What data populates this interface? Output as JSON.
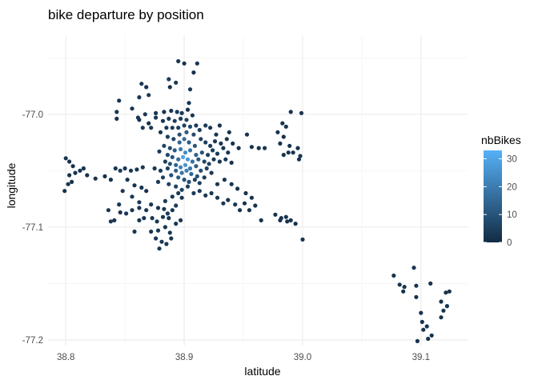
{
  "chart_data": {
    "type": "scatter",
    "title": "bike departure by position",
    "xlabel": "latitude",
    "ylabel": "longitude",
    "xlim": [
      38.785,
      39.14
    ],
    "ylim": [
      -77.205,
      -76.93
    ],
    "x_ticks": [
      38.8,
      38.9,
      39.0,
      39.1
    ],
    "x_tick_labels": [
      "38.8",
      "38.9",
      "39.0",
      "39.1"
    ],
    "y_ticks": [
      -77.0,
      -77.1,
      -77.2
    ],
    "y_tick_labels": [
      "-77.0",
      "-77.1",
      "-77.2"
    ],
    "grid": true,
    "legend": {
      "title": "nbBikes",
      "position": "right",
      "range": [
        0,
        33
      ],
      "ticks": [
        0,
        10,
        20,
        30
      ],
      "tick_labels": [
        "0",
        "10",
        "20",
        "30"
      ],
      "color_low": "#132B43",
      "color_high": "#56B1F7"
    },
    "points": [
      [
        38.895,
        -76.953,
        3
      ],
      [
        38.9,
        -76.955,
        2
      ],
      [
        38.911,
        -76.955,
        3
      ],
      [
        38.887,
        -76.969,
        4
      ],
      [
        38.893,
        -76.972,
        3
      ],
      [
        38.888,
        -76.976,
        2
      ],
      [
        38.908,
        -76.963,
        2
      ],
      [
        38.905,
        -76.978,
        3
      ],
      [
        38.904,
        -76.99,
        2
      ],
      [
        38.864,
        -76.973,
        3
      ],
      [
        38.868,
        -76.976,
        2
      ],
      [
        38.862,
        -76.985,
        3
      ],
      [
        38.87,
        -76.983,
        4
      ],
      [
        38.876,
        -76.999,
        3
      ],
      [
        38.876,
        -77.003,
        3
      ],
      [
        38.862,
        -77.005,
        2
      ],
      [
        38.867,
        -77.0,
        3
      ],
      [
        38.872,
        -77.012,
        3
      ],
      [
        38.856,
        -76.995,
        2
      ],
      [
        38.861,
        -77.003,
        3
      ],
      [
        38.845,
        -76.988,
        2
      ],
      [
        38.843,
        -76.998,
        3
      ],
      [
        38.843,
        -77.004,
        2
      ],
      [
        38.865,
        -77.012,
        3
      ],
      [
        38.87,
        -77.008,
        2
      ],
      [
        38.883,
        -76.998,
        2
      ],
      [
        38.889,
        -76.997,
        3
      ],
      [
        38.894,
        -76.998,
        4
      ],
      [
        38.898,
        -76.999,
        3
      ],
      [
        38.903,
        -76.996,
        2
      ],
      [
        38.882,
        -77.006,
        3
      ],
      [
        38.887,
        -77.004,
        4
      ],
      [
        38.892,
        -77.006,
        5
      ],
      [
        38.897,
        -77.004,
        4
      ],
      [
        38.902,
        -77.005,
        6
      ],
      [
        38.907,
        -77.001,
        3
      ],
      [
        38.885,
        -77.012,
        3
      ],
      [
        38.89,
        -77.012,
        4
      ],
      [
        38.895,
        -77.012,
        5
      ],
      [
        38.9,
        -77.01,
        6
      ],
      [
        38.905,
        -77.011,
        7
      ],
      [
        38.91,
        -77.01,
        4
      ],
      [
        38.88,
        -77.016,
        3
      ],
      [
        38.896,
        -77.018,
        9
      ],
      [
        38.902,
        -77.016,
        12
      ],
      [
        38.908,
        -77.018,
        8
      ],
      [
        38.913,
        -77.014,
        5
      ],
      [
        38.918,
        -77.01,
        4
      ],
      [
        38.922,
        -77.012,
        3
      ],
      [
        38.927,
        -77.018,
        3
      ],
      [
        38.93,
        -77.01,
        2
      ],
      [
        38.938,
        -77.016,
        2
      ],
      [
        38.886,
        -77.02,
        5
      ],
      [
        38.891,
        -77.022,
        6
      ],
      [
        38.896,
        -77.025,
        14
      ],
      [
        38.9,
        -77.022,
        16
      ],
      [
        38.904,
        -77.025,
        12
      ],
      [
        38.909,
        -77.028,
        10
      ],
      [
        38.914,
        -77.022,
        6
      ],
      [
        38.918,
        -77.025,
        5
      ],
      [
        38.922,
        -77.028,
        4
      ],
      [
        38.926,
        -77.024,
        4
      ],
      [
        38.931,
        -77.026,
        3
      ],
      [
        38.936,
        -77.022,
        3
      ],
      [
        38.941,
        -77.026,
        2
      ],
      [
        38.946,
        -77.03,
        2
      ],
      [
        38.953,
        -77.018,
        2
      ],
      [
        38.957,
        -77.029,
        2
      ],
      [
        38.963,
        -77.03,
        2
      ],
      [
        38.968,
        -77.03,
        3
      ],
      [
        38.883,
        -77.028,
        6
      ],
      [
        38.888,
        -77.03,
        8
      ],
      [
        38.892,
        -77.032,
        12
      ],
      [
        38.897,
        -77.031,
        20
      ],
      [
        38.901,
        -77.034,
        24
      ],
      [
        38.905,
        -77.032,
        18
      ],
      [
        38.91,
        -77.036,
        13
      ],
      [
        38.915,
        -77.034,
        9
      ],
      [
        38.92,
        -77.036,
        6
      ],
      [
        38.924,
        -77.032,
        5
      ],
      [
        38.928,
        -77.035,
        4
      ],
      [
        38.933,
        -77.03,
        3
      ],
      [
        38.937,
        -77.034,
        3
      ],
      [
        38.879,
        -77.033,
        4
      ],
      [
        38.886,
        -77.036,
        7
      ],
      [
        38.89,
        -77.038,
        11
      ],
      [
        38.895,
        -77.04,
        16
      ],
      [
        38.899,
        -77.038,
        30
      ],
      [
        38.903,
        -77.04,
        27
      ],
      [
        38.907,
        -77.042,
        17
      ],
      [
        38.912,
        -77.04,
        11
      ],
      [
        38.917,
        -77.042,
        7
      ],
      [
        38.921,
        -77.044,
        6
      ],
      [
        38.925,
        -77.04,
        4
      ],
      [
        38.93,
        -77.042,
        3
      ],
      [
        38.935,
        -77.04,
        3
      ],
      [
        38.94,
        -77.043,
        2
      ],
      [
        38.884,
        -77.042,
        5
      ],
      [
        38.888,
        -77.044,
        9
      ],
      [
        38.893,
        -77.045,
        14
      ],
      [
        38.897,
        -77.047,
        22
      ],
      [
        38.901,
        -77.045,
        26
      ],
      [
        38.905,
        -77.048,
        19
      ],
      [
        38.91,
        -77.046,
        12
      ],
      [
        38.914,
        -77.05,
        8
      ],
      [
        38.919,
        -77.048,
        6
      ],
      [
        38.923,
        -77.052,
        4
      ],
      [
        38.893,
        -77.05,
        13
      ],
      [
        38.898,
        -77.052,
        18
      ],
      [
        38.902,
        -77.05,
        21
      ],
      [
        38.906,
        -77.053,
        15
      ],
      [
        38.911,
        -77.055,
        10
      ],
      [
        38.886,
        -77.048,
        6
      ],
      [
        38.889,
        -77.054,
        9
      ],
      [
        38.895,
        -77.056,
        12
      ],
      [
        38.9,
        -77.058,
        9
      ],
      [
        38.904,
        -77.06,
        8
      ],
      [
        38.909,
        -77.058,
        6
      ],
      [
        38.913,
        -77.061,
        5
      ],
      [
        38.917,
        -77.056,
        4
      ],
      [
        38.88,
        -77.05,
        4
      ],
      [
        38.875,
        -77.048,
        3
      ],
      [
        38.882,
        -77.056,
        5
      ],
      [
        38.878,
        -77.06,
        4
      ],
      [
        38.887,
        -77.062,
        6
      ],
      [
        38.893,
        -77.064,
        6
      ],
      [
        38.898,
        -77.067,
        5
      ],
      [
        38.903,
        -77.064,
        5
      ],
      [
        38.908,
        -77.07,
        4
      ],
      [
        38.913,
        -77.068,
        4
      ],
      [
        38.918,
        -77.072,
        3
      ],
      [
        38.923,
        -77.07,
        3
      ],
      [
        38.928,
        -77.074,
        3
      ],
      [
        38.933,
        -77.079,
        3
      ],
      [
        38.937,
        -77.076,
        2
      ],
      [
        38.943,
        -77.08,
        3
      ],
      [
        38.947,
        -77.085,
        2
      ],
      [
        38.951,
        -77.079,
        2
      ],
      [
        38.955,
        -77.085,
        2
      ],
      [
        38.96,
        -77.081,
        2
      ],
      [
        38.965,
        -77.094,
        2
      ],
      [
        38.952,
        -77.07,
        2
      ],
      [
        38.957,
        -77.074,
        2
      ],
      [
        38.934,
        -77.058,
        3
      ],
      [
        38.94,
        -77.062,
        2
      ],
      [
        38.945,
        -77.066,
        2
      ],
      [
        38.928,
        -77.062,
        3
      ],
      [
        38.983,
        -77.008,
        2
      ],
      [
        38.986,
        -77.011,
        2
      ],
      [
        38.979,
        -77.016,
        2
      ],
      [
        38.984,
        -77.02,
        2
      ],
      [
        38.981,
        -77.026,
        2
      ],
      [
        38.99,
        -76.998,
        2
      ],
      [
        38.999,
        -76.999,
        3
      ],
      [
        38.984,
        -77.036,
        2
      ],
      [
        38.988,
        -77.034,
        2
      ],
      [
        38.992,
        -77.034,
        2
      ],
      [
        38.996,
        -77.03,
        2
      ],
      [
        38.989,
        -77.028,
        2
      ],
      [
        38.998,
        -77.037,
        3
      ],
      [
        38.997,
        -77.04,
        2
      ],
      [
        38.977,
        -77.089,
        2
      ],
      [
        38.982,
        -77.092,
        2
      ],
      [
        38.986,
        -77.091,
        2
      ],
      [
        38.99,
        -77.094,
        2
      ],
      [
        38.994,
        -77.097,
        2
      ],
      [
        38.981,
        -77.094,
        2
      ],
      [
        38.987,
        -77.095,
        2
      ],
      [
        39.0,
        -77.111,
        3
      ],
      [
        38.8,
        -77.039,
        2
      ],
      [
        38.803,
        -77.042,
        2
      ],
      [
        38.806,
        -77.046,
        2
      ],
      [
        38.808,
        -77.052,
        2
      ],
      [
        38.812,
        -77.05,
        2
      ],
      [
        38.815,
        -77.048,
        2
      ],
      [
        38.818,
        -77.054,
        2
      ],
      [
        38.825,
        -77.057,
        2
      ],
      [
        38.833,
        -77.055,
        2
      ],
      [
        38.838,
        -77.058,
        2
      ],
      [
        38.799,
        -77.068,
        2
      ],
      [
        38.802,
        -77.062,
        2
      ],
      [
        38.805,
        -77.06,
        2
      ],
      [
        38.803,
        -77.054,
        2
      ],
      [
        38.842,
        -77.048,
        3
      ],
      [
        38.846,
        -77.05,
        3
      ],
      [
        38.85,
        -77.048,
        3
      ],
      [
        38.855,
        -77.05,
        3
      ],
      [
        38.86,
        -77.049,
        3
      ],
      [
        38.865,
        -77.047,
        3
      ],
      [
        38.852,
        -77.058,
        3
      ],
      [
        38.848,
        -77.068,
        3
      ],
      [
        38.856,
        -77.073,
        3
      ],
      [
        38.862,
        -77.078,
        3
      ],
      [
        38.858,
        -77.063,
        2
      ],
      [
        38.864,
        -77.065,
        2
      ],
      [
        38.868,
        -77.068,
        2
      ],
      [
        38.845,
        -77.08,
        3
      ],
      [
        38.851,
        -77.088,
        3
      ],
      [
        38.856,
        -77.085,
        3
      ],
      [
        38.862,
        -77.083,
        3
      ],
      [
        38.868,
        -77.085,
        3
      ],
      [
        38.872,
        -77.08,
        3
      ],
      [
        38.878,
        -77.083,
        3
      ],
      [
        38.884,
        -77.077,
        4
      ],
      [
        38.89,
        -77.073,
        4
      ],
      [
        38.895,
        -77.07,
        4
      ],
      [
        38.898,
        -77.074,
        3
      ],
      [
        38.836,
        -77.085,
        3
      ],
      [
        38.838,
        -77.095,
        3
      ],
      [
        38.841,
        -77.094,
        3
      ],
      [
        38.846,
        -77.087,
        2
      ],
      [
        38.858,
        -77.104,
        3
      ],
      [
        38.862,
        -77.094,
        3
      ],
      [
        38.866,
        -77.092,
        3
      ],
      [
        38.873,
        -77.092,
        3
      ],
      [
        38.877,
        -77.095,
        3
      ],
      [
        38.882,
        -77.091,
        3
      ],
      [
        38.886,
        -77.088,
        4
      ],
      [
        38.89,
        -77.085,
        3
      ],
      [
        38.893,
        -77.081,
        4
      ],
      [
        38.872,
        -77.104,
        3
      ],
      [
        38.878,
        -77.103,
        3
      ],
      [
        38.884,
        -77.1,
        3
      ],
      [
        38.888,
        -77.105,
        3
      ],
      [
        38.876,
        -77.11,
        3
      ],
      [
        38.881,
        -77.113,
        3
      ],
      [
        38.879,
        -77.119,
        3
      ],
      [
        38.885,
        -77.115,
        3
      ],
      [
        38.889,
        -77.11,
        3
      ],
      [
        38.893,
        -77.097,
        3
      ],
      [
        38.897,
        -77.094,
        3
      ],
      [
        38.883,
        -77.084,
        3
      ],
      [
        38.887,
        -77.092,
        3
      ],
      [
        39.077,
        -77.143,
        2
      ],
      [
        39.082,
        -77.151,
        2
      ],
      [
        39.085,
        -77.157,
        2
      ],
      [
        39.086,
        -77.153,
        2
      ],
      [
        39.094,
        -77.136,
        3
      ],
      [
        39.096,
        -77.152,
        2
      ],
      [
        39.096,
        -77.162,
        2
      ],
      [
        39.1,
        -77.176,
        2
      ],
      [
        39.101,
        -77.184,
        2
      ],
      [
        39.102,
        -77.191,
        2
      ],
      [
        39.105,
        -77.188,
        2
      ],
      [
        39.108,
        -77.15,
        2
      ],
      [
        39.109,
        -77.196,
        2
      ],
      [
        39.106,
        -77.199,
        2
      ],
      [
        39.097,
        -77.201,
        2
      ],
      [
        39.117,
        -77.18,
        2
      ],
      [
        39.119,
        -77.174,
        2
      ],
      [
        39.117,
        -77.166,
        2
      ],
      [
        39.121,
        -77.158,
        2
      ],
      [
        39.124,
        -77.157,
        2
      ],
      [
        39.122,
        -77.17,
        2
      ]
    ]
  }
}
